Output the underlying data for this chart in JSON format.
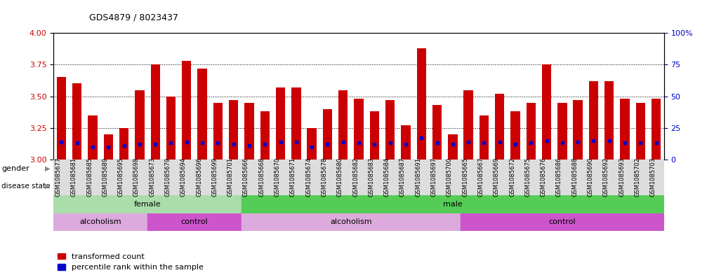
{
  "title": "GDS4879 / 8023437",
  "samples": [
    "GSM1085677",
    "GSM1085681",
    "GSM1085685",
    "GSM1085689",
    "GSM1085695",
    "GSM1085698",
    "GSM1085673",
    "GSM1085679",
    "GSM1085694",
    "GSM1085696",
    "GSM1085699",
    "GSM1085701",
    "GSM1085666",
    "GSM1085668",
    "GSM1085670",
    "GSM1085671",
    "GSM1085674",
    "GSM1085678",
    "GSM1085680",
    "GSM1085682",
    "GSM1085683",
    "GSM1085684",
    "GSM1085687",
    "GSM1085691",
    "GSM1085697",
    "GSM1085700",
    "GSM1085665",
    "GSM1085667",
    "GSM1085669",
    "GSM1085672",
    "GSM1085675",
    "GSM1085676",
    "GSM1085686",
    "GSM1085688",
    "GSM1085690",
    "GSM1085692",
    "GSM1085693",
    "GSM1085702",
    "GSM1085703"
  ],
  "bar_heights": [
    3.65,
    3.6,
    3.35,
    3.2,
    3.25,
    3.55,
    3.75,
    3.5,
    3.78,
    3.72,
    3.45,
    3.47,
    3.45,
    3.38,
    3.57,
    3.57,
    3.25,
    3.4,
    3.55,
    3.48,
    3.38,
    3.47,
    3.27,
    3.88,
    3.43,
    3.2,
    3.55,
    3.35,
    3.52,
    3.38,
    3.45,
    3.75,
    3.45,
    3.47,
    3.62,
    3.62,
    3.48,
    3.45,
    3.48
  ],
  "percentile_heights": [
    3.14,
    3.13,
    3.1,
    3.1,
    3.11,
    3.12,
    3.12,
    3.13,
    3.14,
    3.13,
    3.13,
    3.12,
    3.11,
    3.12,
    3.14,
    3.14,
    3.1,
    3.12,
    3.14,
    3.13,
    3.12,
    3.13,
    3.12,
    3.17,
    3.13,
    3.12,
    3.14,
    3.13,
    3.14,
    3.12,
    3.13,
    3.15,
    3.13,
    3.14,
    3.15,
    3.15,
    3.13,
    3.13,
    3.13
  ],
  "ylim": [
    3.0,
    4.0
  ],
  "yticks_left": [
    3.0,
    3.25,
    3.5,
    3.75,
    4.0
  ],
  "yticks_right": [
    0,
    25,
    50,
    75,
    100
  ],
  "bar_color": "#cc0000",
  "percentile_color": "#0000cc",
  "gender_groups": [
    {
      "label": "female",
      "start": 0,
      "end": 12,
      "color": "#aaddaa"
    },
    {
      "label": "male",
      "start": 12,
      "end": 39,
      "color": "#55cc55"
    }
  ],
  "disease_groups": [
    {
      "label": "alcoholism",
      "start": 0,
      "end": 6,
      "color": "#ddaadd"
    },
    {
      "label": "control",
      "start": 6,
      "end": 12,
      "color": "#cc55cc"
    },
    {
      "label": "alcoholism",
      "start": 12,
      "end": 26,
      "color": "#ddaadd"
    },
    {
      "label": "control",
      "start": 26,
      "end": 39,
      "color": "#cc55cc"
    }
  ],
  "axis_label_color_left": "#cc0000",
  "axis_label_color_right": "#0000cc",
  "bar_color_legend": "#cc0000",
  "percentile_color_legend": "#0000cc"
}
